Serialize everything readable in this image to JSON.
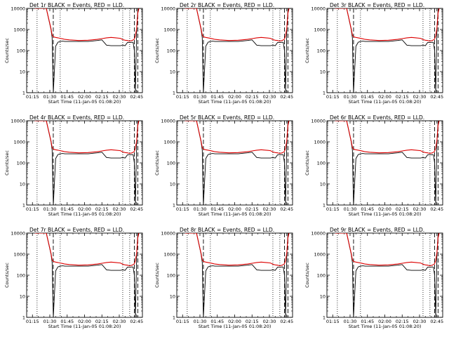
{
  "chart_data": {
    "type": "line",
    "layout": "3x3",
    "x_tick_labels": [
      "01:15",
      "01:30",
      "01:45",
      "02:00",
      "02:15",
      "02:30",
      "02:45"
    ],
    "x_ticks_minutes": [
      0,
      15,
      30,
      45,
      60,
      75,
      90
    ],
    "xlim_minutes": [
      -5,
      95
    ],
    "y_scale": "log",
    "ylim": [
      1,
      10000
    ],
    "y_tick_values": [
      1,
      10,
      100,
      1000,
      10000
    ],
    "y_tick_labels": [
      "1",
      "10",
      "100",
      "1000",
      "10000"
    ],
    "xlabel": "Start Time (11-Jan-05 01:08:20)",
    "ylabel": "Counts/sec",
    "legend": "none",
    "grid": false,
    "series_colors": {
      "events": "#000000",
      "lld": "#dd0000"
    },
    "vertical_lines": {
      "dotted_minutes": [
        4,
        24,
        78,
        84
      ],
      "dashed_minutes": [
        18,
        88,
        91
      ]
    },
    "panels": [
      {
        "title": "Det 1r BLACK = Events, RED = LLD.",
        "x": [
          2,
          12,
          16,
          17,
          18,
          20,
          22,
          24,
          26,
          28,
          32,
          40,
          48,
          56,
          60,
          64,
          68,
          72,
          76,
          78,
          80,
          82,
          84,
          85,
          86,
          87,
          88,
          89,
          90,
          91,
          92
        ],
        "events": [
          10000,
          10000,
          1000,
          400,
          1,
          160,
          250,
          270,
          280,
          270,
          270,
          270,
          270,
          300,
          320,
          180,
          170,
          170,
          170,
          180,
          170,
          240,
          240,
          240,
          250,
          240,
          100,
          1,
          1000,
          8000,
          10000
        ],
        "lld": [
          10000,
          10000,
          1100,
          550,
          450,
          420,
          400,
          380,
          360,
          340,
          320,
          300,
          310,
          340,
          370,
          400,
          420,
          400,
          380,
          330,
          310,
          300,
          280,
          290,
          300,
          320,
          350,
          500,
          1200,
          6000,
          10000
        ]
      },
      {
        "title": "Det 2r BLACK = Events, RED = LLD.",
        "x": [
          2,
          12,
          16,
          17,
          18,
          20,
          22,
          24,
          26,
          28,
          32,
          40,
          48,
          56,
          60,
          64,
          68,
          72,
          76,
          78,
          80,
          82,
          84,
          85,
          86,
          87,
          88,
          89,
          90,
          91,
          92
        ],
        "events": [
          10000,
          10000,
          1000,
          400,
          1,
          160,
          250,
          270,
          280,
          270,
          270,
          270,
          270,
          300,
          320,
          180,
          170,
          170,
          170,
          180,
          170,
          240,
          240,
          240,
          250,
          240,
          100,
          1,
          1000,
          8000,
          10000
        ],
        "lld": [
          10000,
          10000,
          1100,
          550,
          450,
          420,
          400,
          380,
          360,
          340,
          320,
          300,
          310,
          340,
          370,
          400,
          420,
          400,
          380,
          330,
          310,
          300,
          280,
          290,
          300,
          320,
          350,
          500,
          1200,
          6000,
          10000
        ]
      },
      {
        "title": "Det 3r BLACK = Events, RED = LLD.",
        "x": [
          2,
          12,
          16,
          17,
          18,
          20,
          22,
          24,
          26,
          28,
          32,
          40,
          48,
          56,
          60,
          64,
          68,
          72,
          76,
          78,
          80,
          82,
          84,
          85,
          86,
          87,
          88,
          89,
          90,
          91,
          92
        ],
        "events": [
          10000,
          10000,
          1000,
          400,
          1,
          160,
          250,
          270,
          280,
          270,
          270,
          270,
          270,
          300,
          320,
          180,
          170,
          170,
          170,
          180,
          170,
          240,
          240,
          240,
          250,
          240,
          100,
          1,
          1000,
          8000,
          10000
        ],
        "lld": [
          10000,
          10000,
          1100,
          550,
          450,
          420,
          400,
          380,
          360,
          340,
          320,
          300,
          310,
          340,
          370,
          400,
          420,
          400,
          380,
          330,
          310,
          300,
          280,
          290,
          300,
          320,
          350,
          500,
          1200,
          6000,
          10000
        ]
      },
      {
        "title": "Det 4r BLACK = Events, RED = LLD.",
        "x": [
          2,
          12,
          16,
          17,
          18,
          20,
          22,
          24,
          26,
          28,
          32,
          40,
          48,
          56,
          60,
          64,
          68,
          72,
          76,
          78,
          80,
          82,
          84,
          85,
          86,
          87,
          88,
          89,
          90,
          91,
          92
        ],
        "events": [
          10000,
          10000,
          1000,
          400,
          1,
          160,
          250,
          270,
          280,
          270,
          270,
          270,
          270,
          300,
          320,
          180,
          170,
          170,
          170,
          180,
          170,
          240,
          240,
          240,
          250,
          240,
          100,
          1,
          1000,
          8000,
          10000
        ],
        "lld": [
          10000,
          10000,
          1100,
          550,
          450,
          420,
          400,
          380,
          360,
          340,
          320,
          300,
          310,
          340,
          370,
          400,
          420,
          400,
          380,
          330,
          310,
          300,
          280,
          290,
          300,
          320,
          350,
          500,
          1200,
          6000,
          10000
        ]
      },
      {
        "title": "Det 5r BLACK = Events, RED = LLD.",
        "x": [
          2,
          12,
          16,
          17,
          18,
          20,
          22,
          24,
          26,
          28,
          32,
          40,
          48,
          56,
          60,
          64,
          68,
          72,
          76,
          78,
          80,
          82,
          84,
          85,
          86,
          87,
          88,
          89,
          90,
          91,
          92
        ],
        "events": [
          10000,
          10000,
          1000,
          400,
          1,
          160,
          250,
          270,
          280,
          270,
          270,
          270,
          270,
          300,
          320,
          180,
          170,
          170,
          170,
          180,
          170,
          240,
          240,
          240,
          250,
          240,
          100,
          1,
          1000,
          8000,
          10000
        ],
        "lld": [
          10000,
          10000,
          1100,
          550,
          450,
          420,
          400,
          380,
          360,
          340,
          320,
          300,
          310,
          340,
          370,
          400,
          420,
          400,
          380,
          330,
          310,
          300,
          280,
          290,
          300,
          320,
          350,
          500,
          1200,
          6000,
          10000
        ]
      },
      {
        "title": "Det 6r BLACK = Events, RED = LLD.",
        "x": [
          2,
          12,
          16,
          17,
          18,
          20,
          22,
          24,
          26,
          28,
          32,
          40,
          48,
          56,
          60,
          64,
          68,
          72,
          76,
          78,
          80,
          82,
          84,
          85,
          86,
          87,
          88,
          89,
          90,
          91,
          92
        ],
        "events": [
          10000,
          10000,
          1000,
          400,
          1,
          160,
          250,
          270,
          280,
          270,
          270,
          270,
          270,
          300,
          320,
          180,
          170,
          170,
          170,
          180,
          170,
          240,
          240,
          240,
          250,
          240,
          100,
          1,
          1000,
          8000,
          10000
        ],
        "lld": [
          10000,
          10000,
          1100,
          550,
          450,
          420,
          400,
          380,
          360,
          340,
          320,
          300,
          310,
          340,
          370,
          400,
          420,
          400,
          380,
          330,
          310,
          300,
          280,
          290,
          300,
          320,
          350,
          500,
          1200,
          6000,
          10000
        ]
      },
      {
        "title": "Det 7r BLACK = Events, RED = LLD.",
        "x": [
          2,
          12,
          16,
          17,
          18,
          20,
          22,
          24,
          26,
          28,
          32,
          40,
          48,
          56,
          60,
          64,
          68,
          72,
          76,
          78,
          80,
          82,
          84,
          85,
          86,
          87,
          88,
          89,
          90,
          91,
          92
        ],
        "events": [
          10000,
          10000,
          1000,
          400,
          1,
          160,
          250,
          270,
          280,
          270,
          270,
          270,
          270,
          300,
          320,
          180,
          170,
          170,
          170,
          180,
          170,
          240,
          240,
          240,
          250,
          240,
          100,
          1,
          1000,
          8000,
          10000
        ],
        "lld": [
          10000,
          10000,
          1100,
          550,
          450,
          420,
          400,
          380,
          360,
          340,
          320,
          300,
          310,
          340,
          370,
          400,
          420,
          400,
          380,
          330,
          310,
          300,
          280,
          290,
          300,
          320,
          350,
          500,
          1200,
          6000,
          10000
        ]
      },
      {
        "title": "Det 8r BLACK = Events, RED = LLD.",
        "x": [
          2,
          12,
          16,
          17,
          18,
          20,
          22,
          24,
          26,
          28,
          32,
          40,
          48,
          56,
          60,
          64,
          68,
          72,
          76,
          78,
          80,
          82,
          84,
          85,
          86,
          87,
          88,
          89,
          90,
          91,
          92
        ],
        "events": [
          10000,
          10000,
          1000,
          400,
          1,
          160,
          250,
          270,
          280,
          270,
          270,
          270,
          270,
          300,
          320,
          180,
          170,
          170,
          170,
          180,
          170,
          240,
          240,
          240,
          250,
          240,
          100,
          1,
          1000,
          8000,
          10000
        ],
        "lld": [
          10000,
          10000,
          1100,
          550,
          450,
          420,
          400,
          380,
          360,
          340,
          320,
          300,
          310,
          340,
          370,
          400,
          420,
          400,
          380,
          330,
          310,
          300,
          280,
          290,
          300,
          320,
          350,
          500,
          1200,
          6000,
          10000
        ]
      },
      {
        "title": "Det 9r BLACK = Events, RED = LLD.",
        "x": [
          2,
          12,
          16,
          17,
          18,
          20,
          22,
          24,
          26,
          28,
          32,
          40,
          48,
          56,
          60,
          64,
          68,
          72,
          76,
          78,
          80,
          82,
          84,
          85,
          86,
          87,
          88,
          89,
          90,
          91,
          92
        ],
        "events": [
          10000,
          10000,
          1000,
          400,
          1,
          160,
          250,
          270,
          280,
          270,
          270,
          270,
          270,
          300,
          320,
          180,
          170,
          170,
          170,
          180,
          170,
          240,
          240,
          240,
          250,
          240,
          100,
          1,
          1000,
          8000,
          10000
        ],
        "lld": [
          10000,
          10000,
          1100,
          550,
          450,
          420,
          400,
          380,
          360,
          340,
          320,
          300,
          310,
          340,
          370,
          400,
          420,
          400,
          380,
          330,
          310,
          300,
          280,
          290,
          300,
          320,
          350,
          500,
          1200,
          6000,
          10000
        ]
      }
    ]
  }
}
